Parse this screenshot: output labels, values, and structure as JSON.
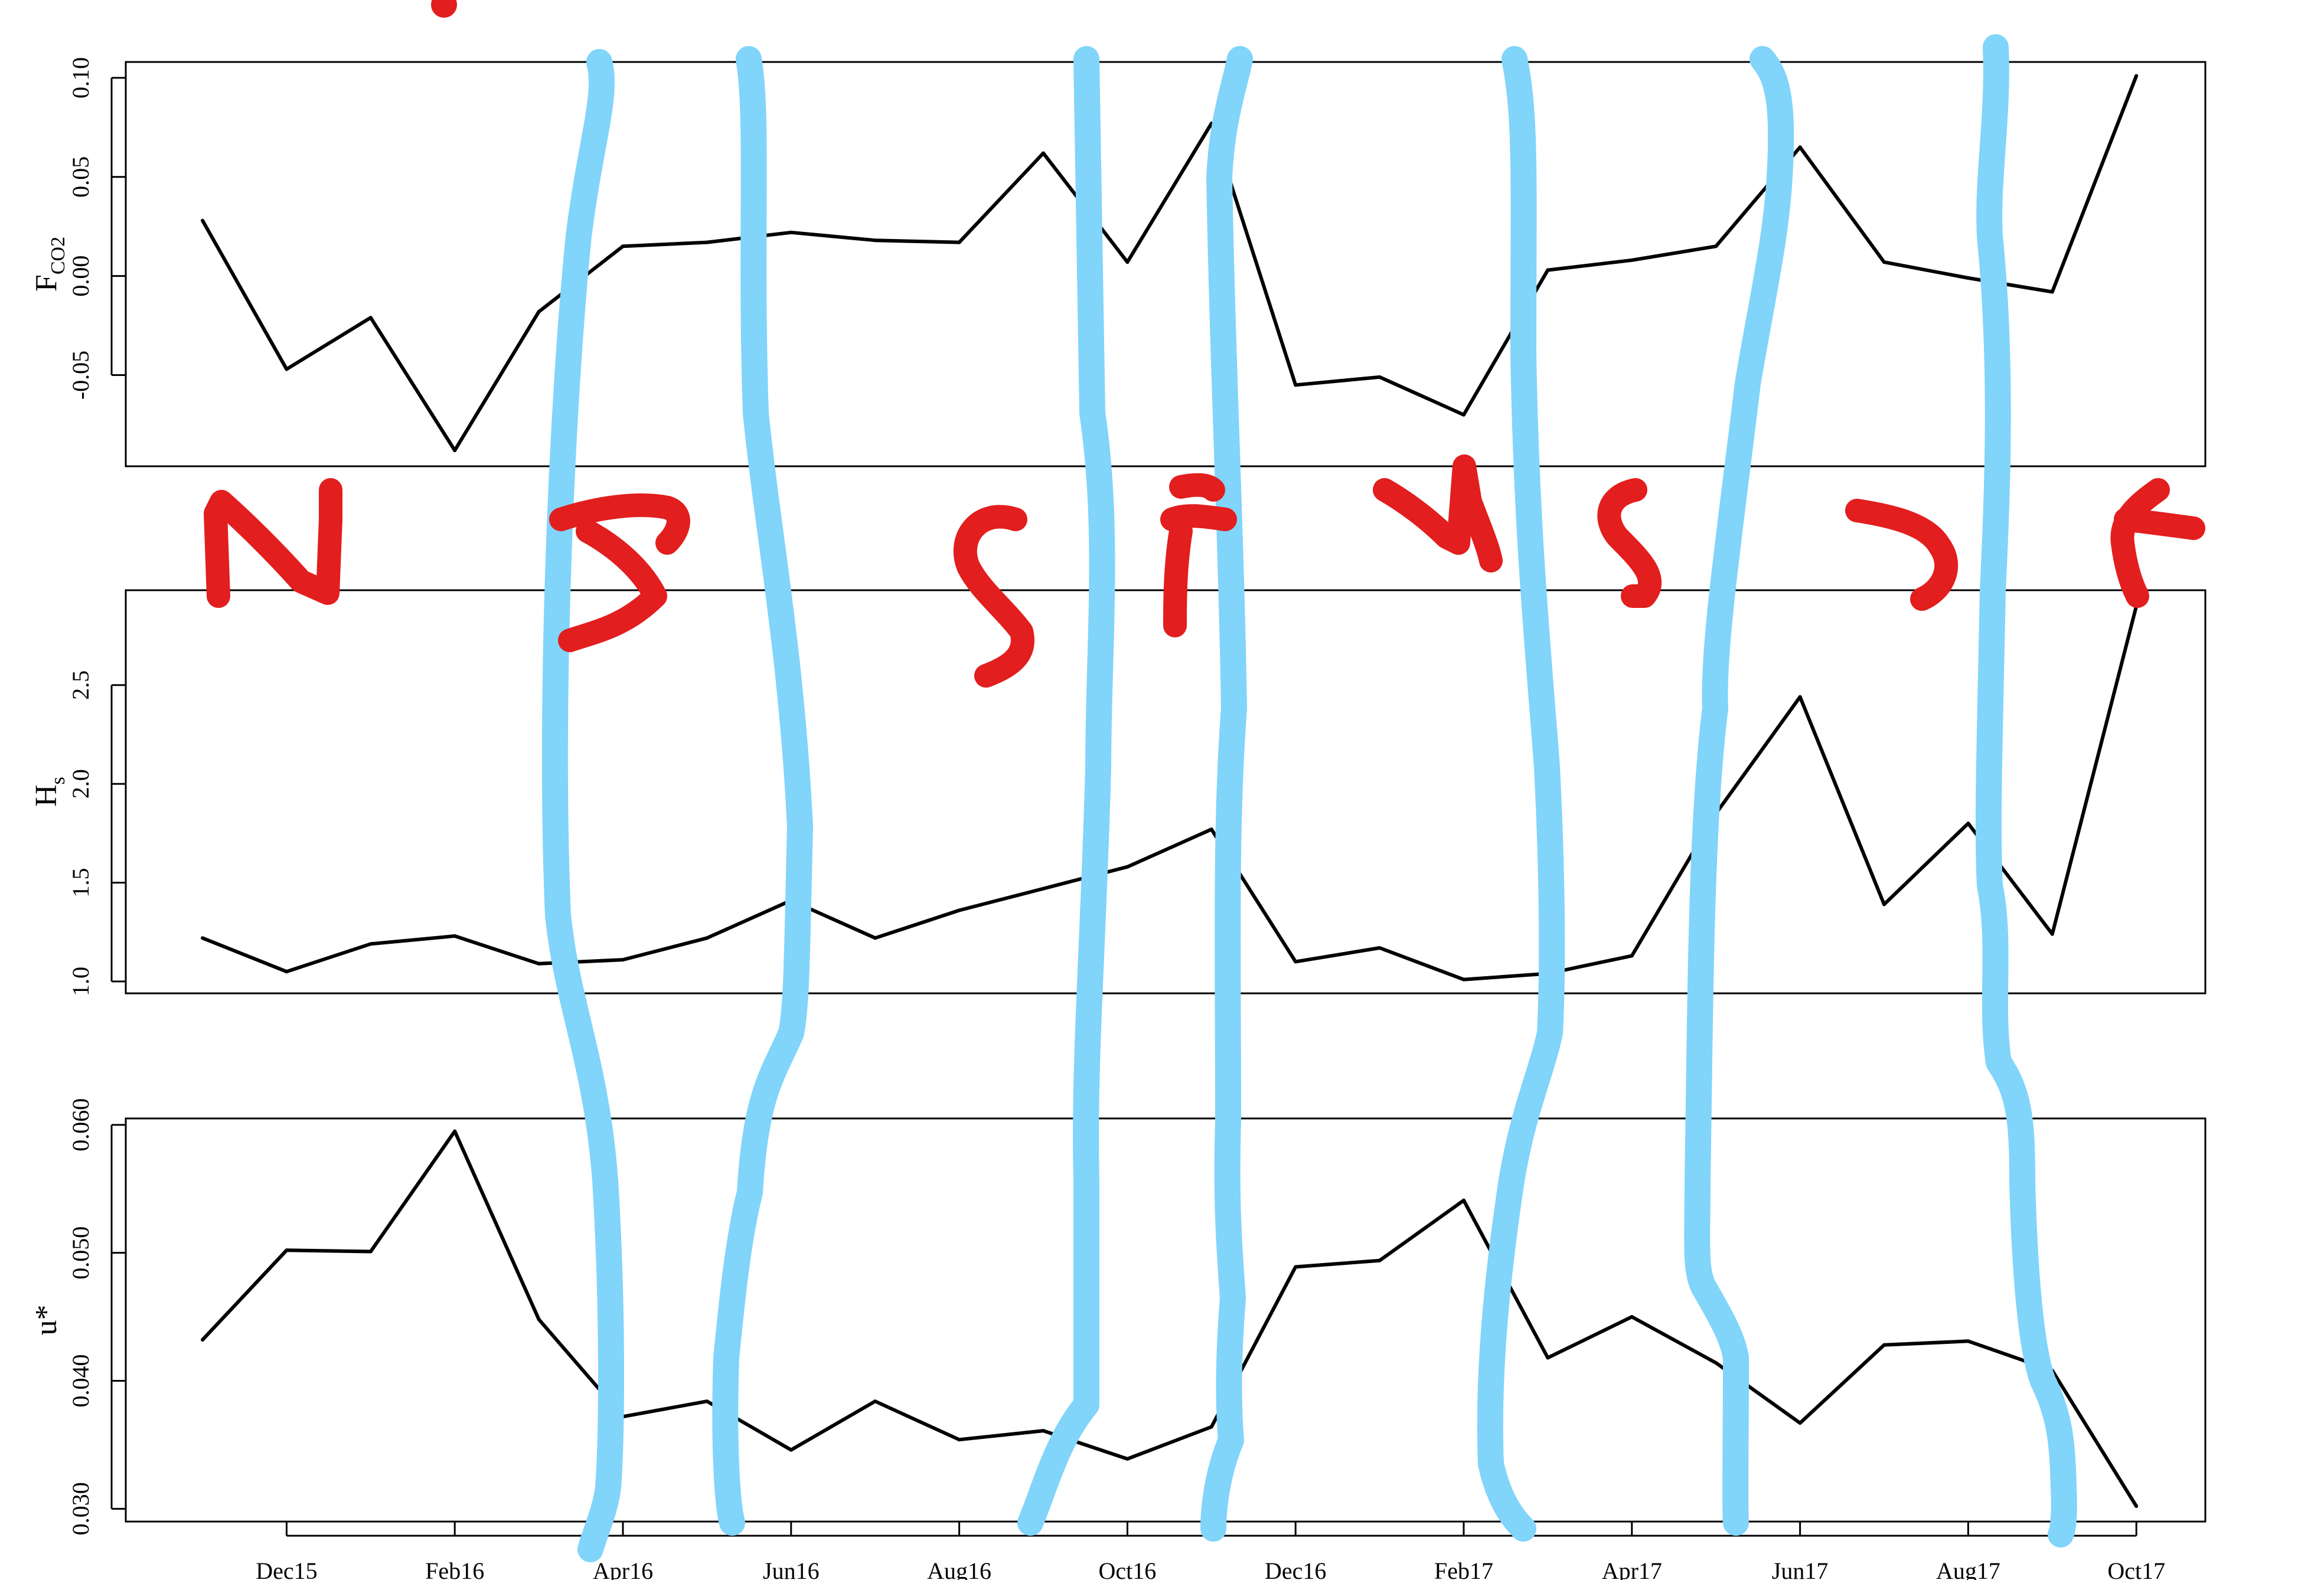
{
  "chart_data": [
    {
      "type": "line",
      "ylabel": "F",
      "ylabel_sub": "CO2",
      "ylim": [
        -0.096,
        0.108
      ],
      "yticks": [
        -0.05,
        0.0,
        0.05,
        0.1
      ],
      "ytick_labels": [
        "-0.05",
        "0.00",
        "0.05",
        "0.10"
      ],
      "x": [
        "2015-11",
        "2015-12",
        "2016-01",
        "2016-02",
        "2016-03",
        "2016-04",
        "2016-05",
        "2016-06",
        "2016-07",
        "2016-08",
        "2016-09",
        "2016-10",
        "2016-11",
        "2016-12",
        "2017-01",
        "2017-02",
        "2017-03",
        "2017-04",
        "2017-05",
        "2017-06",
        "2017-07",
        "2017-08",
        "2017-09",
        "2017-10"
      ],
      "values": [
        0.028,
        -0.047,
        -0.021,
        -0.088,
        -0.018,
        0.015,
        0.017,
        0.022,
        0.018,
        0.017,
        0.062,
        0.007,
        0.077,
        -0.055,
        -0.051,
        -0.07,
        0.003,
        0.008,
        0.015,
        0.065,
        0.007,
        -0.001,
        -0.008,
        0.101
      ]
    },
    {
      "type": "line",
      "ylabel": "H",
      "ylabel_sub": "s",
      "ylim": [
        0.94,
        2.98
      ],
      "yticks": [
        1.0,
        1.5,
        2.0,
        2.5
      ],
      "ytick_labels": [
        "1.0",
        "1.5",
        "2.0",
        "2.5"
      ],
      "x": [
        "2015-11",
        "2015-12",
        "2016-01",
        "2016-02",
        "2016-03",
        "2016-04",
        "2016-05",
        "2016-06",
        "2016-07",
        "2016-08",
        "2016-09",
        "2016-10",
        "2016-11",
        "2016-12",
        "2017-01",
        "2017-02",
        "2017-03",
        "2017-04",
        "2017-05",
        "2017-06",
        "2017-07",
        "2017-08",
        "2017-09",
        "2017-10"
      ],
      "values": [
        1.22,
        1.05,
        1.19,
        1.23,
        1.09,
        1.11,
        1.22,
        1.41,
        1.22,
        1.36,
        1.47,
        1.58,
        1.77,
        1.1,
        1.17,
        1.01,
        1.04,
        1.13,
        1.85,
        2.44,
        1.39,
        1.8,
        1.24,
        2.9
      ]
    },
    {
      "type": "line",
      "ylabel": "u*",
      "ylim": [
        0.029,
        0.0605
      ],
      "yticks": [
        0.03,
        0.04,
        0.05,
        0.06
      ],
      "ytick_labels": [
        "0.030",
        "0.040",
        "0.050",
        "0.060"
      ],
      "xticks": [
        "2015-12",
        "2016-02",
        "2016-04",
        "2016-06",
        "2016-08",
        "2016-10",
        "2016-12",
        "2017-02",
        "2017-04",
        "2017-06",
        "2017-08",
        "2017-10"
      ],
      "xtick_labels": [
        "Dec15",
        "Feb16",
        "Apr16",
        "Jun16",
        "Aug16",
        "Oct16",
        "Dec16",
        "Feb17",
        "Apr17",
        "Jun17",
        "Aug17",
        "Oct17"
      ],
      "x": [
        "2015-11",
        "2015-12",
        "2016-01",
        "2016-02",
        "2016-03",
        "2016-04",
        "2016-05",
        "2016-06",
        "2016-07",
        "2016-08",
        "2016-09",
        "2016-10",
        "2016-11",
        "2016-12",
        "2017-01",
        "2017-02",
        "2017-03",
        "2017-04",
        "2017-05",
        "2017-06",
        "2017-07",
        "2017-08",
        "2017-09",
        "2017-10"
      ],
      "values": [
        0.0432,
        0.0502,
        0.0501,
        0.0595,
        0.0448,
        0.0372,
        0.0384,
        0.0346,
        0.0384,
        0.0354,
        0.0361,
        0.0339,
        0.0364,
        0.0489,
        0.0494,
        0.0541,
        0.0418,
        0.045,
        0.0414,
        0.0367,
        0.0428,
        0.0431,
        0.0408,
        0.0302
      ]
    }
  ],
  "annotations": {
    "season_letters": [
      "N",
      "S",
      "S",
      "F",
      "N",
      "S",
      "S",
      "F"
    ],
    "stroke_color": "#81d4fa",
    "letter_color": "#e21e1e"
  }
}
